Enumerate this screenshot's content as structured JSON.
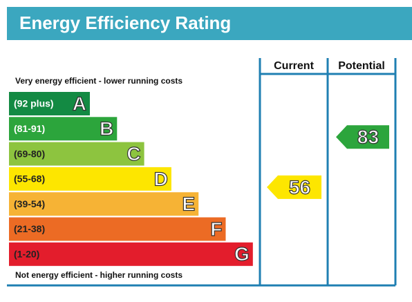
{
  "title": "Energy Efficiency Rating",
  "columns": [
    "Current",
    "Potential"
  ],
  "top_note": "Very energy efficient - lower running costs",
  "bottom_note": "Not energy efficient - higher running costs",
  "bands": [
    {
      "range": "(92 plus)",
      "letter": "A",
      "color": "#138a43"
    },
    {
      "range": "(81-91)",
      "letter": "B",
      "color": "#2ca53c"
    },
    {
      "range": "(69-80)",
      "letter": "C",
      "color": "#8dc43f"
    },
    {
      "range": "(55-68)",
      "letter": "D",
      "color": "#fde600"
    },
    {
      "range": "(39-54)",
      "letter": "E",
      "color": "#f6b335"
    },
    {
      "range": "(21-38)",
      "letter": "F",
      "color": "#ec6b24"
    },
    {
      "range": "(1-20)",
      "letter": "G",
      "color": "#e31d2c"
    }
  ],
  "current": {
    "value": "56",
    "color": "#fde600"
  },
  "potential": {
    "value": "83",
    "color": "#2ca53c"
  }
}
